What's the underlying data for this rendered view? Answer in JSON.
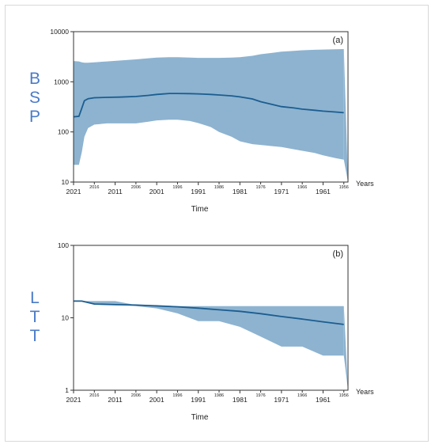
{
  "chart_data": [
    {
      "type": "area",
      "panel_label": "(a)",
      "ylabel": "B\nS\nP",
      "xlabel": "Time",
      "years_label": "Years",
      "yscale": "log",
      "ylim": [
        10,
        10000
      ],
      "xlim": [
        2021,
        1955
      ],
      "y_ticks": [
        "10",
        "100",
        "1000",
        "10000"
      ],
      "y_tick_values": [
        10,
        100,
        1000,
        10000
      ],
      "x_ticks_major": [
        "2021",
        "2011",
        "2001",
        "1991",
        "1981",
        "1971",
        "1961"
      ],
      "x_ticks_minor": [
        "2016",
        "2006",
        "1996",
        "1986",
        "1976",
        "1966",
        "1956"
      ],
      "series": [
        {
          "name": "median",
          "x": [
            2021,
            2019.7,
            2019.0,
            2018.4,
            2017.5,
            2016,
            2013,
            2010,
            2006,
            2003,
            2001,
            1998,
            1996,
            1993,
            1991,
            1988,
            1986,
            1983,
            1981,
            1978,
            1976,
            1973,
            1971,
            1968,
            1966,
            1963,
            1961,
            1958,
            1956
          ],
          "median": [
            200,
            205,
            300,
            420,
            460,
            480,
            490,
            495,
            510,
            535,
            560,
            585,
            585,
            580,
            575,
            560,
            545,
            525,
            500,
            455,
            400,
            350,
            320,
            300,
            285,
            270,
            260,
            250,
            242
          ],
          "upper": [
            2600,
            2550,
            2450,
            2400,
            2400,
            2450,
            2550,
            2650,
            2800,
            2950,
            3050,
            3100,
            3100,
            3050,
            3000,
            3000,
            3000,
            3050,
            3100,
            3300,
            3550,
            3800,
            4000,
            4150,
            4250,
            4350,
            4400,
            4450,
            4500
          ],
          "lower": [
            22,
            22,
            40,
            80,
            120,
            140,
            148,
            148,
            148,
            160,
            170,
            175,
            175,
            165,
            150,
            125,
            100,
            80,
            65,
            57,
            55,
            52,
            50,
            45,
            42,
            38,
            34,
            30,
            28
          ]
        }
      ]
    },
    {
      "type": "area",
      "panel_label": "(b)",
      "ylabel": "L\nT\nT",
      "xlabel": "Time",
      "years_label": "Years",
      "yscale": "log",
      "ylim": [
        1,
        100
      ],
      "xlim": [
        2021,
        1955
      ],
      "y_ticks": [
        "1",
        "10",
        "100"
      ],
      "y_tick_values": [
        1,
        10,
        100
      ],
      "x_ticks_major": [
        "2021",
        "2011",
        "2001",
        "1991",
        "1981",
        "1971",
        "1961"
      ],
      "x_ticks_minor": [
        "2016",
        "2006",
        "1996",
        "1986",
        "1976",
        "1966",
        "1956"
      ],
      "series": [
        {
          "name": "median",
          "x": [
            2021,
            2019,
            2016,
            2011,
            2006,
            2001,
            1996,
            1991,
            1986,
            1981,
            1976,
            1971,
            1966,
            1961,
            1956
          ],
          "median": [
            17,
            17,
            15.5,
            15.2,
            15,
            14.6,
            14.2,
            13.6,
            12.9,
            12.3,
            11.4,
            10.4,
            9.6,
            8.8,
            8.1
          ],
          "upper": [
            17,
            17,
            17,
            17,
            15,
            15,
            14.5,
            14.5,
            14.5,
            14.5,
            14.5,
            14.5,
            14.5,
            14.5,
            14.5
          ],
          "lower": [
            17,
            17,
            15.5,
            15.2,
            14.5,
            13.5,
            11.5,
            9,
            9,
            7.5,
            5.5,
            4,
            4,
            3,
            3
          ]
        }
      ]
    }
  ]
}
